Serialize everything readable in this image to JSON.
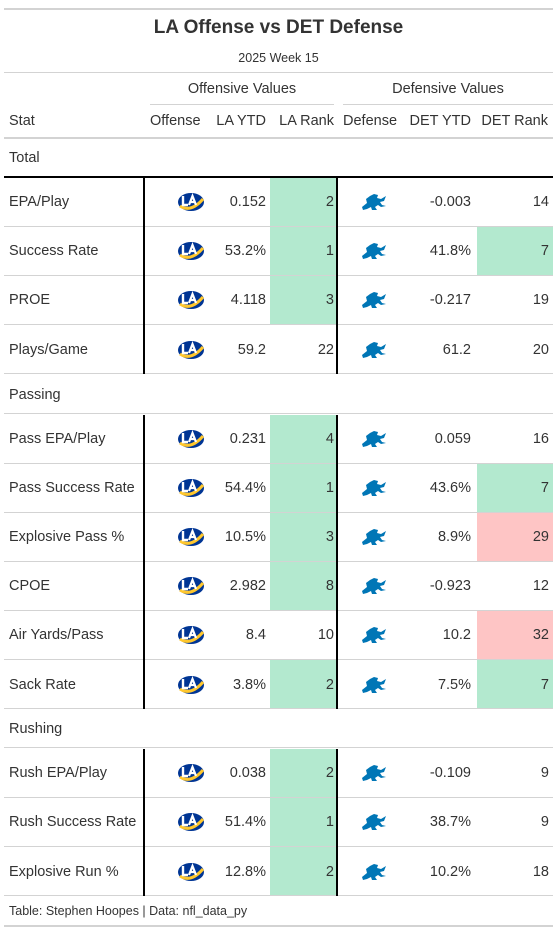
{
  "title": "LA Offense vs DET Defense",
  "subtitle": "2025 Week 15",
  "spanners": {
    "offense": "Offensive Values",
    "defense": "Defensive Values"
  },
  "columns": {
    "stat": "Stat",
    "offense": "Offense",
    "la_ytd": "LA YTD",
    "la_rank": "LA Rank",
    "defense": "Defense",
    "det_ytd": "DET YTD",
    "det_rank": "DET Rank"
  },
  "colors": {
    "good": "#b3e9cf",
    "bad": "#fec5c5",
    "rams_blue": "#003594",
    "rams_gold": "#ffc72c",
    "lions_blue": "#0076b6"
  },
  "icons": {
    "offense": "rams-logo-icon",
    "defense": "lions-logo-icon"
  },
  "groups": [
    {
      "name": "Total",
      "rows": [
        {
          "stat": "EPA/Play",
          "la_ytd": "0.152",
          "la_rank": "2",
          "la_hl": "good",
          "det_ytd": "-0.003",
          "det_rank": "14",
          "det_hl": ""
        },
        {
          "stat": "Success Rate",
          "la_ytd": "53.2%",
          "la_rank": "1",
          "la_hl": "good",
          "det_ytd": "41.8%",
          "det_rank": "7",
          "det_hl": "good"
        },
        {
          "stat": "PROE",
          "la_ytd": "4.118",
          "la_rank": "3",
          "la_hl": "good",
          "det_ytd": "-0.217",
          "det_rank": "19",
          "det_hl": ""
        },
        {
          "stat": "Plays/Game",
          "la_ytd": "59.2",
          "la_rank": "22",
          "la_hl": "",
          "det_ytd": "61.2",
          "det_rank": "20",
          "det_hl": ""
        }
      ]
    },
    {
      "name": "Passing",
      "rows": [
        {
          "stat": "Pass EPA/Play",
          "la_ytd": "0.231",
          "la_rank": "4",
          "la_hl": "good",
          "det_ytd": "0.059",
          "det_rank": "16",
          "det_hl": ""
        },
        {
          "stat": "Pass Success Rate",
          "la_ytd": "54.4%",
          "la_rank": "1",
          "la_hl": "good",
          "det_ytd": "43.6%",
          "det_rank": "7",
          "det_hl": "good"
        },
        {
          "stat": "Explosive Pass %",
          "la_ytd": "10.5%",
          "la_rank": "3",
          "la_hl": "good",
          "det_ytd": "8.9%",
          "det_rank": "29",
          "det_hl": "bad"
        },
        {
          "stat": "CPOE",
          "la_ytd": "2.982",
          "la_rank": "8",
          "la_hl": "good",
          "det_ytd": "-0.923",
          "det_rank": "12",
          "det_hl": ""
        },
        {
          "stat": "Air Yards/Pass",
          "la_ytd": "8.4",
          "la_rank": "10",
          "la_hl": "",
          "det_ytd": "10.2",
          "det_rank": "32",
          "det_hl": "bad"
        },
        {
          "stat": "Sack Rate",
          "la_ytd": "3.8%",
          "la_rank": "2",
          "la_hl": "good",
          "det_ytd": "7.5%",
          "det_rank": "7",
          "det_hl": "good"
        }
      ]
    },
    {
      "name": "Rushing",
      "rows": [
        {
          "stat": "Rush EPA/Play",
          "la_ytd": "0.038",
          "la_rank": "2",
          "la_hl": "good",
          "det_ytd": "-0.109",
          "det_rank": "9",
          "det_hl": ""
        },
        {
          "stat": "Rush Success Rate",
          "la_ytd": "51.4%",
          "la_rank": "1",
          "la_hl": "good",
          "det_ytd": "38.7%",
          "det_rank": "9",
          "det_hl": ""
        },
        {
          "stat": "Explosive Run %",
          "la_ytd": "12.8%",
          "la_rank": "2",
          "la_hl": "good",
          "det_ytd": "10.2%",
          "det_rank": "18",
          "det_hl": ""
        }
      ]
    }
  ],
  "footer": "Table: Stephen Hoopes | Data: nfl_data_py"
}
